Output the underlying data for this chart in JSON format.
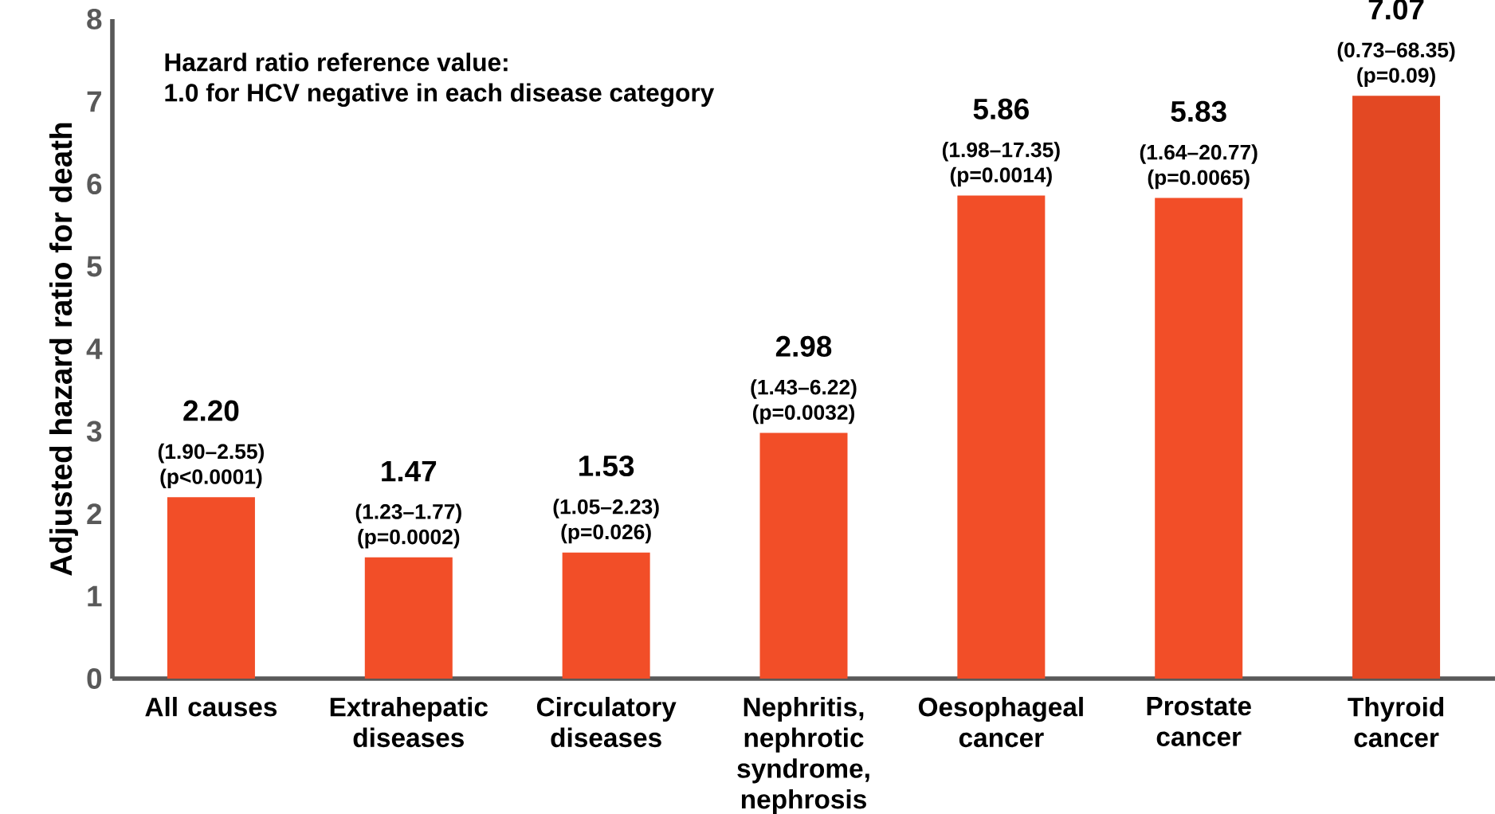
{
  "chart_data": {
    "type": "bar",
    "ylabel": "Adjusted hazard ratio for death",
    "categories": [
      "All causes",
      "Extrahepatic diseases",
      "Circulatory diseases",
      "Nephritis, nephrotic syndrome, nephrosis",
      "Oesophageal cancer",
      "Prostate cancer",
      "Thyroid cancer"
    ],
    "values": [
      2.2,
      1.47,
      1.53,
      2.98,
      5.86,
      5.83,
      7.07
    ],
    "colors": [
      "#f24e28",
      "#f24e28",
      "#f24e28",
      "#f24e28",
      "#f24e28",
      "#f24e28",
      "#e34823"
    ],
    "value_labels": [
      "2.20",
      "1.47",
      "1.53",
      "2.98",
      "5.86",
      "5.83",
      "7.07"
    ],
    "ylim": [
      0,
      8
    ],
    "yticks": [
      0,
      1,
      2,
      3,
      4,
      5,
      6,
      7,
      8
    ],
    "grid": false,
    "annotations": [
      "Hazard ratio reference value:",
      "1.0 for HCV negative in each disease category",
      {
        "text": "(1.90–2.55) (p<0.0001)",
        "x": "All causes",
        "y": 2.2
      },
      {
        "text": "(1.23–1.77) (p=0.0002)",
        "x": "Extrahepatic diseases",
        "y": 1.47
      },
      {
        "text": "(1.05–2.23) (p=0.026)",
        "x": "Circulatory diseases",
        "y": 1.53
      },
      {
        "text": "(1.43–6.22) (p=0.0032)",
        "x": "Nephritis, nephrotic syndrome, nephrosis",
        "y": 2.98
      },
      {
        "text": "(1.98–17.35) (p=0.0014)",
        "x": "Oesophageal cancer",
        "y": 5.86
      },
      {
        "text": "(1.64–20.77) (p=0.0065)",
        "x": "Prostate cancer",
        "y": 5.83
      },
      {
        "text": "(0.73–68.35) (p=0.09)",
        "x": "Thyroid cancer",
        "y": 7.07
      }
    ]
  }
}
